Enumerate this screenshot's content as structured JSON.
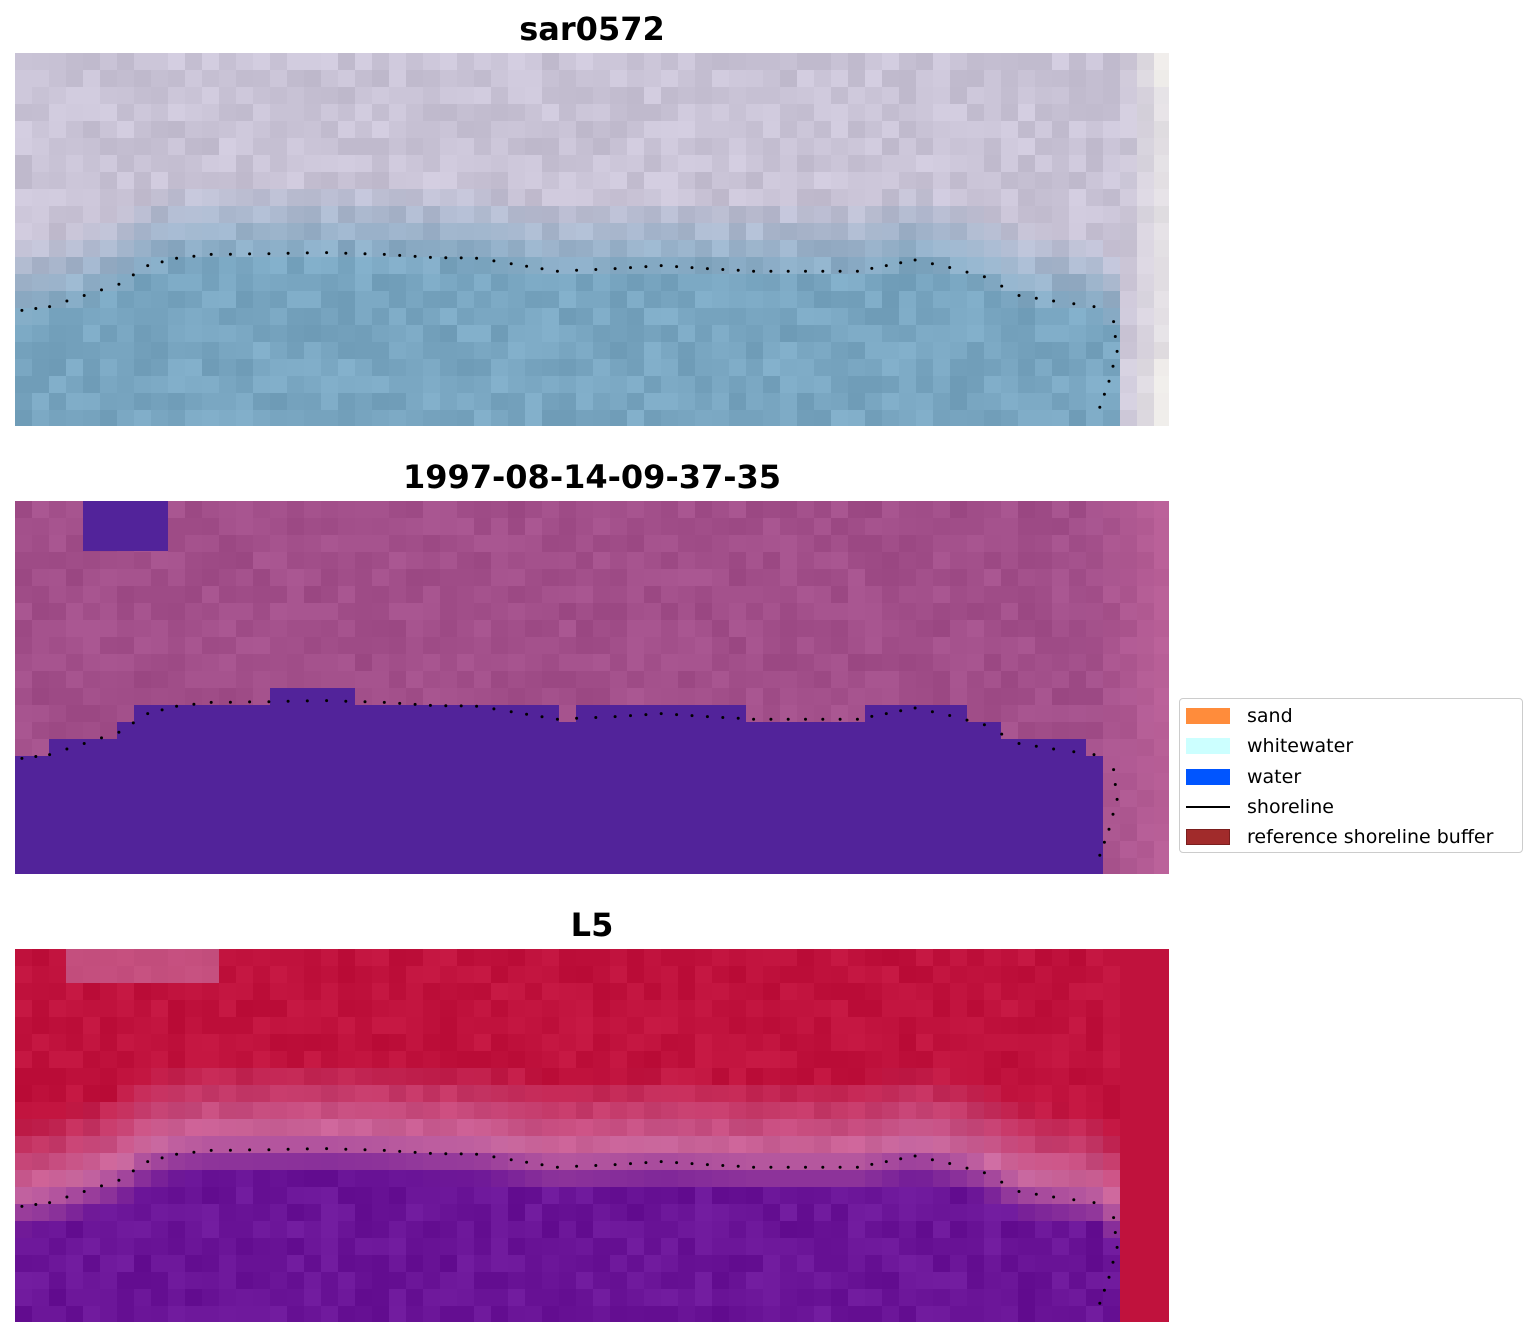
{
  "panels": [
    {
      "title": "sar0572",
      "kind": "rgb"
    },
    {
      "title": "1997-08-14-09-37-35",
      "kind": "classified"
    },
    {
      "title": "L5",
      "kind": "index"
    }
  ],
  "legend": {
    "items": [
      {
        "label": "sand",
        "color": "#ff8c3b",
        "type": "patch"
      },
      {
        "label": "whitewater",
        "color": "#ccffff",
        "type": "patch"
      },
      {
        "label": "water",
        "color": "#0055ff",
        "type": "patch"
      },
      {
        "label": "shoreline",
        "color": "#000000",
        "type": "line"
      },
      {
        "label": "reference shoreline buffer",
        "color": "#a12b2b",
        "edge": "#7a1e1e",
        "type": "patch"
      }
    ]
  },
  "colors": {
    "rgb_water": "#79a6c1",
    "rgb_land": "#c9c3d6",
    "classified_bg": "#a24f8a",
    "classified_water": "#52239a",
    "index_high": "#c0123d",
    "index_low": "#6a1497",
    "index_edge": "#cb6aa0"
  }
}
